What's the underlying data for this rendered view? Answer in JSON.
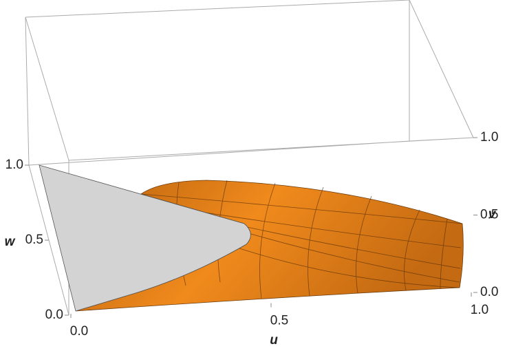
{
  "chart_data": {
    "type": "surface3d",
    "xlabel": "u",
    "ylabel": "v",
    "zlabel": "w",
    "xlim": [
      0,
      1
    ],
    "xticks": [
      {
        "value": 0,
        "label": "0.0"
      },
      0.5,
      {
        "value": 1,
        "label": "1.0"
      }
    ],
    "ylim": [
      0,
      1
    ],
    "yticks": [
      {
        "value": 0,
        "label": "0.0"
      },
      0.5,
      {
        "value": 1,
        "label": "1.0"
      }
    ],
    "zlim": [
      0,
      1
    ],
    "zticks": [
      {
        "value": 0,
        "label": "0.0"
      },
      0.5,
      {
        "value": 1,
        "label": "1.0"
      }
    ],
    "color": "#f08a1c"
  }
}
